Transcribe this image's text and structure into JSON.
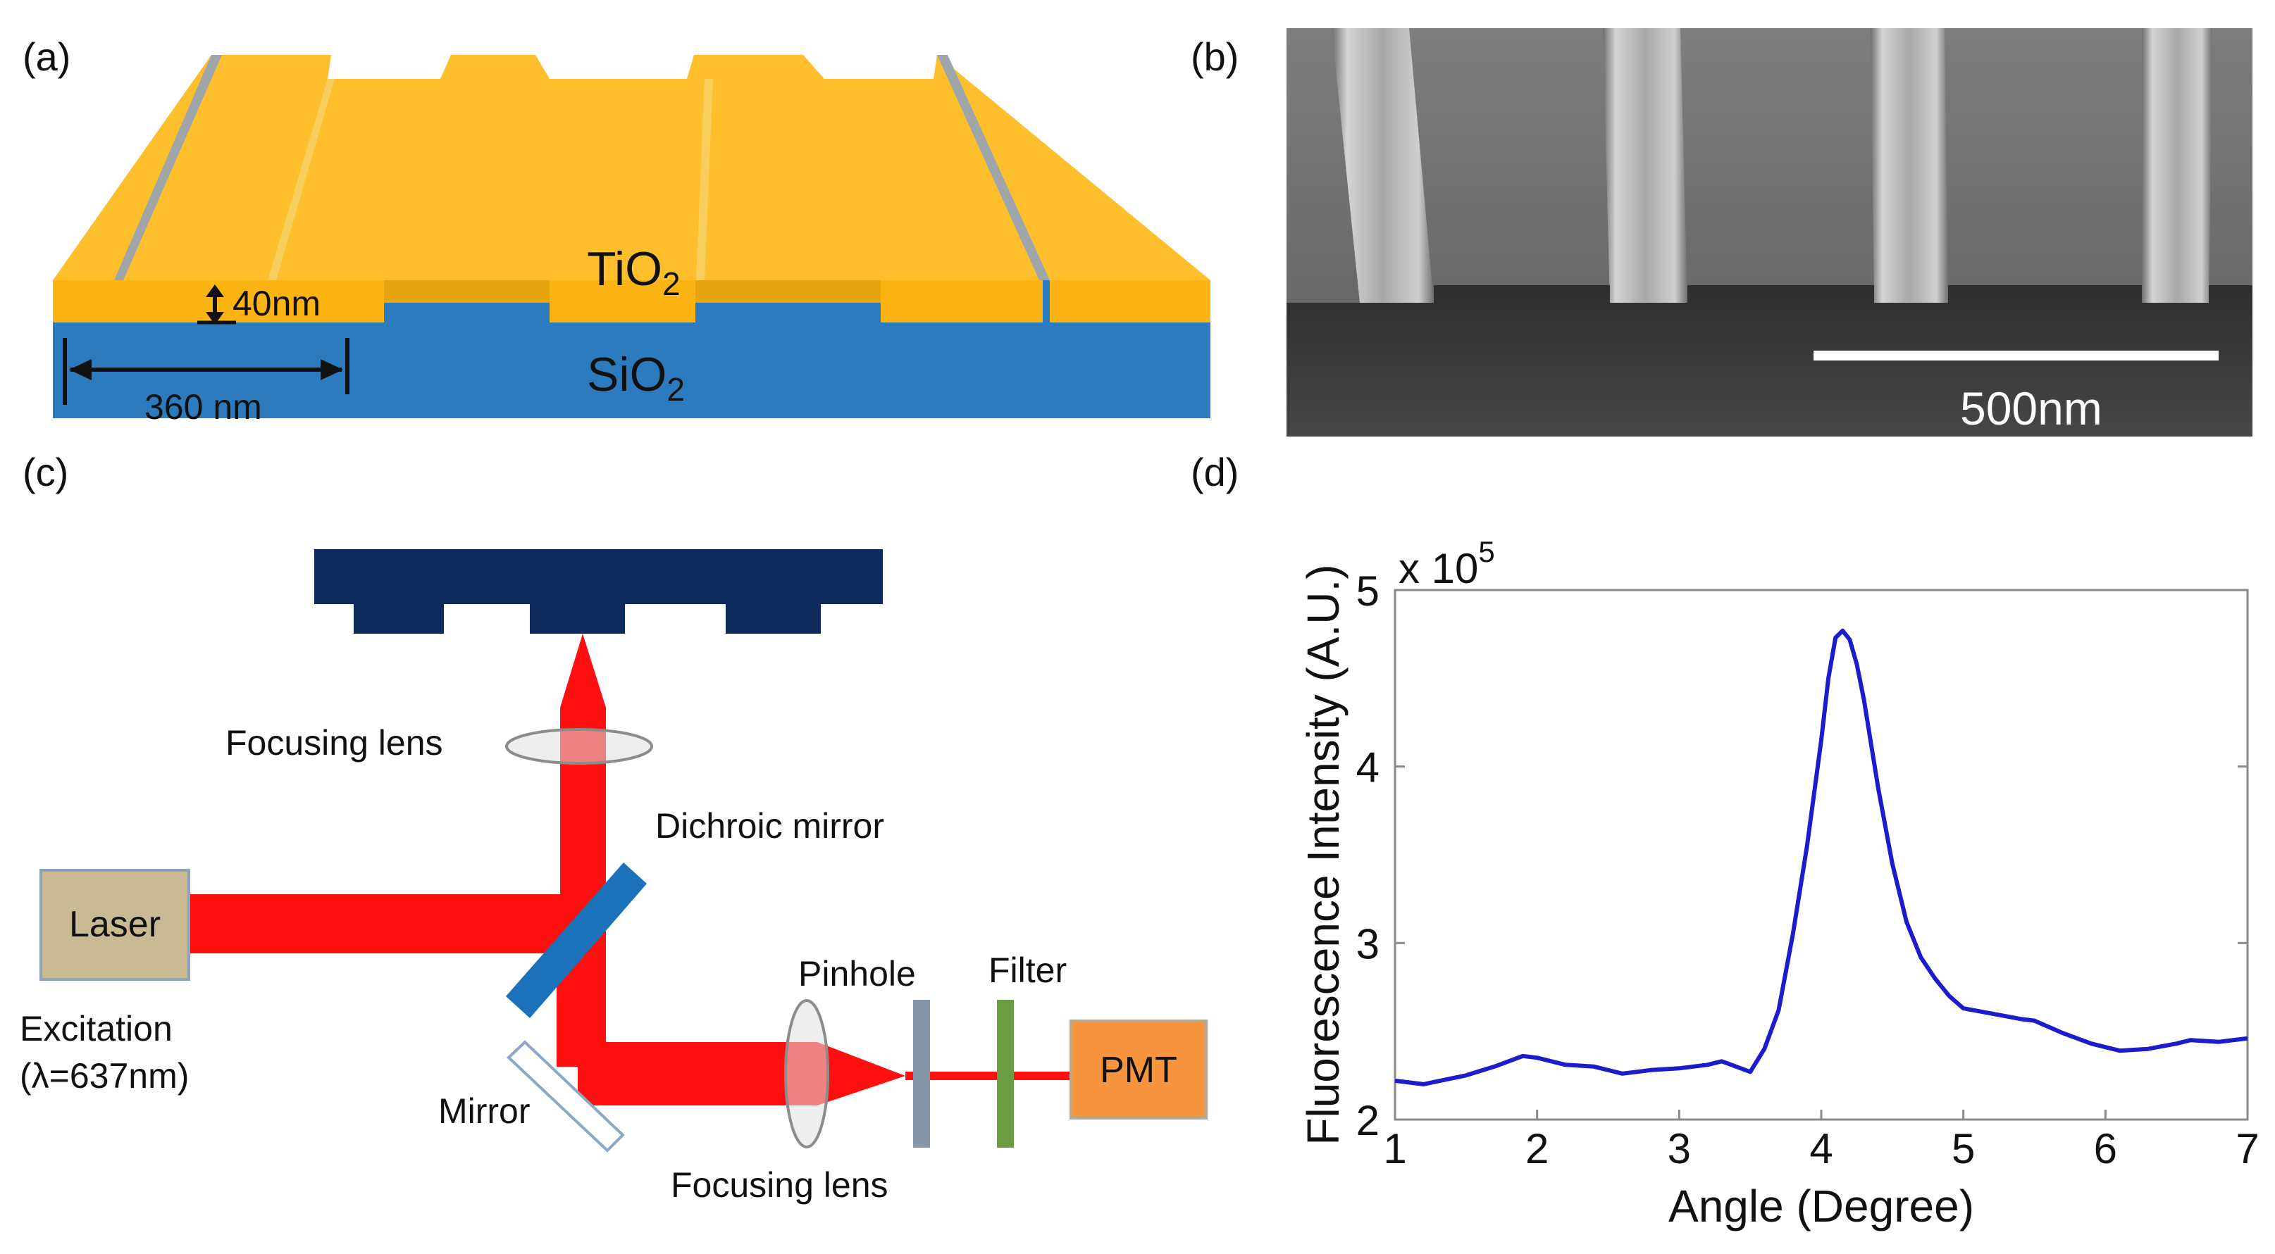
{
  "figure": {
    "panel_a": {
      "label": "(a)",
      "material_top": "TiO",
      "material_top_sub": "2",
      "material_bottom": "SiO",
      "material_bottom_sub": "2",
      "depth_label": "40nm",
      "period_label": "360 nm",
      "colors": {
        "tio2_top": "#FDC02C",
        "tio2_front": "#FBB413",
        "tio2_groove": "#E8A40F",
        "sio2": "#2C7BBE",
        "sio2_shadow": "#1E64A3",
        "side_gray": "#9FA6AA"
      }
    },
    "panel_b": {
      "label": "(b)",
      "scalebar_label": "500nm"
    },
    "panel_c": {
      "label": "(c)",
      "focusing_lens_top": "Focusing lens",
      "dichroic_mirror": "Dichroic mirror",
      "laser": "Laser",
      "excitation": "Excitation",
      "wavelength": "(λ=637nm)",
      "pinhole": "Pinhole",
      "filter": "Filter",
      "pmt": "PMT",
      "mirror": "Mirror",
      "focusing_lens_bottom": "Focusing lens",
      "colors": {
        "beam": "#FF0F0F",
        "grating": "#0E2A5C",
        "laser_box": "#C9BA94",
        "pmt_box": "#F7943E",
        "dichroic": "#1C72BA",
        "pinhole": "#8695A8",
        "filter": "#6A9C44",
        "lens": "#E0E0E0"
      }
    },
    "panel_d": {
      "label": "(d)",
      "exponent_base": "x 10",
      "exponent_power": "5"
    }
  },
  "chart_data": {
    "type": "line",
    "title": "",
    "xlabel": "Angle (Degree)",
    "ylabel": "Fluorescence Intensity (A.U.)",
    "xlim": [
      1,
      7
    ],
    "ylim": [
      2,
      5
    ],
    "xticks": [
      1,
      2,
      3,
      4,
      5,
      6,
      7
    ],
    "yticks": [
      2,
      3,
      4,
      5
    ],
    "y_scale_note": "x 10^5",
    "series": [
      {
        "name": "Fluorescence",
        "color": "#1C1CCC",
        "x": [
          1.0,
          1.2,
          1.5,
          1.7,
          1.9,
          2.0,
          2.2,
          2.4,
          2.6,
          2.8,
          3.0,
          3.2,
          3.3,
          3.5,
          3.6,
          3.7,
          3.8,
          3.9,
          4.0,
          4.05,
          4.1,
          4.15,
          4.2,
          4.25,
          4.3,
          4.4,
          4.5,
          4.6,
          4.7,
          4.8,
          4.9,
          5.0,
          5.2,
          5.4,
          5.5,
          5.7,
          5.9,
          6.0,
          6.1,
          6.3,
          6.5,
          6.6,
          6.8,
          7.0
        ],
        "y": [
          2.22,
          2.2,
          2.25,
          2.3,
          2.36,
          2.35,
          2.31,
          2.3,
          2.26,
          2.28,
          2.29,
          2.31,
          2.33,
          2.27,
          2.4,
          2.62,
          3.05,
          3.55,
          4.15,
          4.5,
          4.73,
          4.77,
          4.72,
          4.58,
          4.38,
          3.88,
          3.45,
          3.12,
          2.92,
          2.8,
          2.7,
          2.63,
          2.6,
          2.57,
          2.56,
          2.49,
          2.43,
          2.41,
          2.39,
          2.4,
          2.43,
          2.45,
          2.44,
          2.46
        ]
      }
    ]
  }
}
